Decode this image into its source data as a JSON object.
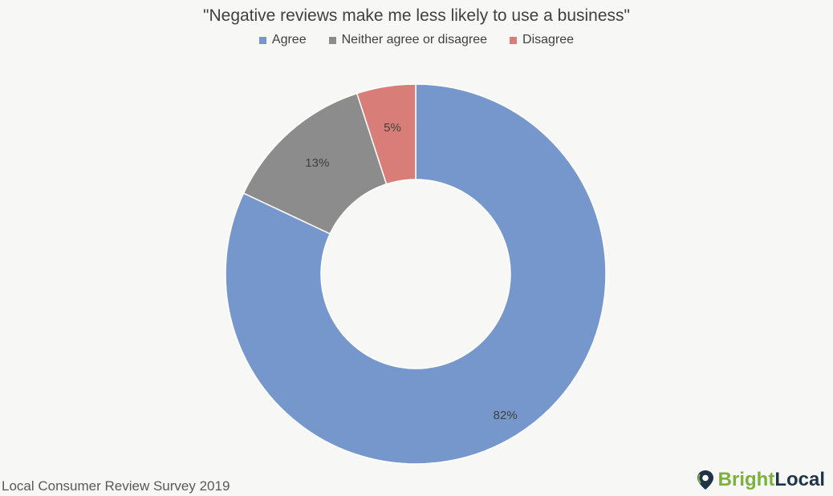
{
  "chart_data": {
    "type": "pie",
    "variant": "donut",
    "title": "\"Negative reviews make me less likely to use a business\"",
    "legend_position": "top",
    "series": [
      {
        "name": "Agree",
        "value": 82,
        "label": "82%",
        "color": "#7697cc"
      },
      {
        "name": "Neither agree or disagree",
        "value": 13,
        "label": "13%",
        "color": "#8c8c8c"
      },
      {
        "name": "Disagree",
        "value": 5,
        "label": "5%",
        "color": "#d97d78"
      }
    ]
  },
  "footer": {
    "source_note": "Local Consumer Review Survey 2019",
    "brand_part1": "Bright",
    "brand_part2": "Local",
    "brand_icon": "map-pin-icon"
  }
}
